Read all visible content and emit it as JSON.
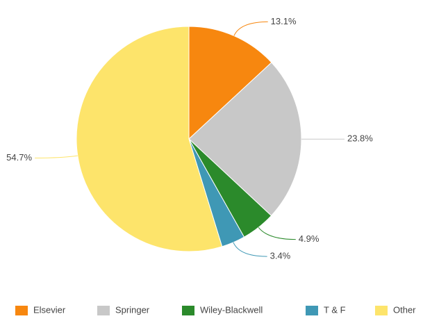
{
  "chart_data": {
    "type": "pie",
    "categories": [
      "Elsevier",
      "Springer",
      "Wiley-Blackwell",
      "T & F",
      "Other"
    ],
    "values": [
      13.1,
      23.8,
      4.9,
      3.4,
      54.7
    ],
    "value_labels": [
      "13.1%",
      "23.8%",
      "4.9%",
      "3.4%",
      "54.7%"
    ],
    "colors": [
      "#f7870f",
      "#c8c8c8",
      "#2b8a2b",
      "#3f98b5",
      "#fde46b"
    ],
    "legend": "bottom"
  }
}
